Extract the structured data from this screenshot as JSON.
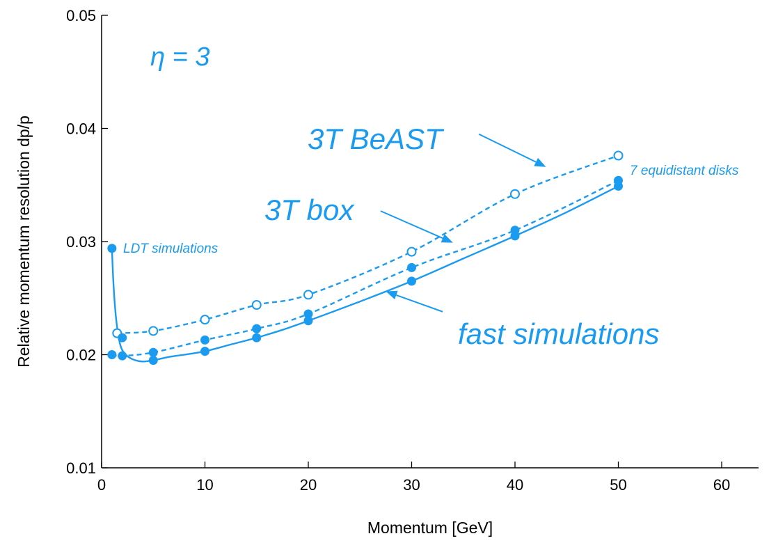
{
  "chart_data": {
    "type": "line",
    "xlabel": "Momentum [GeV]",
    "ylabel": "Relative momentum resolution dp/p",
    "xlim": [
      0,
      65
    ],
    "ylim": [
      0.01,
      0.05
    ],
    "xticks": [
      0,
      10,
      20,
      30,
      40,
      50,
      60
    ],
    "xtick_labels": [
      "0",
      "10",
      "20",
      "30",
      "40",
      "50",
      "60"
    ],
    "yticks": [
      0.01,
      0.02,
      0.03,
      0.04,
      0.05
    ],
    "ytick_labels": [
      "0.01",
      "0.02",
      "0.03",
      "0.04",
      "0.05"
    ],
    "grid": false,
    "accent_color": "#1a9bf0",
    "series": [
      {
        "style": "dashed",
        "marker": "open-circle",
        "x": [
          1.5,
          5,
          10,
          15,
          20,
          30,
          40,
          50
        ],
        "y": [
          0.0219,
          0.0221,
          0.0231,
          0.0244,
          0.0253,
          0.0291,
          0.0342,
          0.0376
        ]
      },
      {
        "style": "dashed",
        "marker": "filled-circle",
        "x": [
          1,
          2,
          5,
          10,
          15,
          20,
          30,
          40,
          50
        ],
        "y": [
          0.02,
          0.0199,
          0.0202,
          0.0213,
          0.0223,
          0.0236,
          0.0277,
          0.031,
          0.0354
        ]
      },
      {
        "style": "solid",
        "marker": "filled-circle",
        "x": [
          1,
          2,
          5,
          10,
          15,
          20,
          30,
          40,
          50
        ],
        "y": [
          0.0294,
          0.0215,
          0.0195,
          0.0203,
          0.0215,
          0.023,
          0.0265,
          0.0305,
          0.0349
        ],
        "curve_x": [
          1,
          1.15,
          1.4,
          1.7,
          2,
          2.6,
          3.3,
          4,
          5,
          6.5,
          8,
          10,
          12.5,
          15,
          17.5,
          20,
          25,
          30,
          35,
          40,
          45,
          50
        ],
        "curve_y": [
          0.0294,
          0.0262,
          0.0232,
          0.0213,
          0.0204,
          0.0198,
          0.0195,
          0.0194,
          0.0195,
          0.0198,
          0.02,
          0.0203,
          0.0209,
          0.0215,
          0.0222,
          0.023,
          0.0247,
          0.0265,
          0.0285,
          0.0305,
          0.0326,
          0.0349
        ]
      }
    ],
    "annotations": {
      "eta": "η = 3",
      "beast": "3T BeAST",
      "box": "3T box",
      "fast": "fast simulations",
      "ldt": "LDT simulations",
      "disks": "7 equidistant disks"
    },
    "arrows": [
      {
        "from": [
          36.5,
          0.0395
        ],
        "to": [
          43.0,
          0.0366
        ]
      },
      {
        "from": [
          27.0,
          0.0327
        ],
        "to": [
          34.0,
          0.0299
        ]
      },
      {
        "from": [
          33.0,
          0.0238
        ],
        "to": [
          27.5,
          0.0256
        ]
      }
    ]
  }
}
